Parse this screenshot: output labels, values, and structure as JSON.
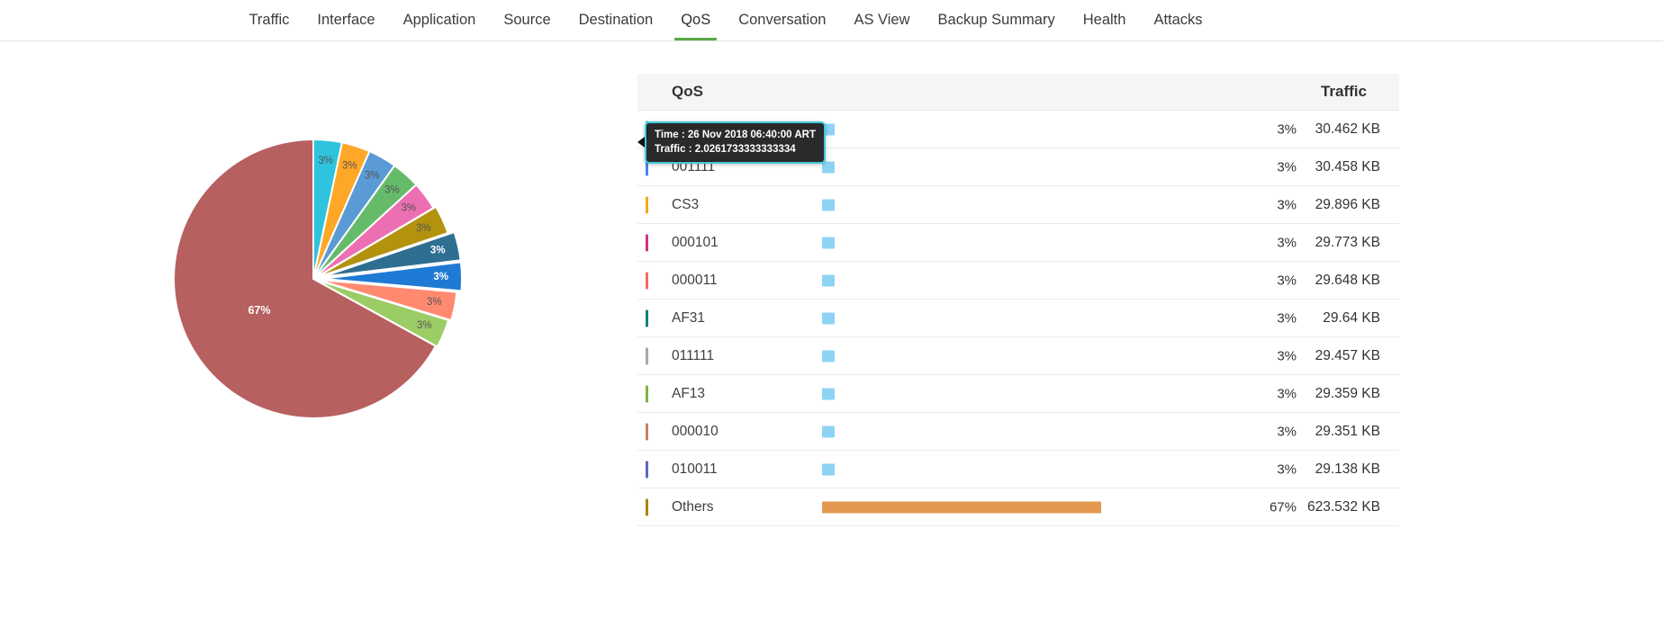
{
  "nav": {
    "items": [
      {
        "label": "Traffic",
        "active": false
      },
      {
        "label": "Interface",
        "active": false
      },
      {
        "label": "Application",
        "active": false
      },
      {
        "label": "Source",
        "active": false
      },
      {
        "label": "Destination",
        "active": false
      },
      {
        "label": "QoS",
        "active": true
      },
      {
        "label": "Conversation",
        "active": false
      },
      {
        "label": "AS View",
        "active": false
      },
      {
        "label": "Backup Summary",
        "active": false
      },
      {
        "label": "Health",
        "active": false
      },
      {
        "label": "Attacks",
        "active": false
      }
    ]
  },
  "chart_data": {
    "type": "pie",
    "labels": [
      "",
      "001111",
      "CS3",
      "000101",
      "000011",
      "AF31",
      "011111",
      "AF13",
      "000010",
      "010011",
      "Others"
    ],
    "values": [
      3.3,
      3.3,
      3.3,
      3.3,
      3.3,
      3.3,
      3.3,
      3.3,
      3.3,
      3.3,
      67
    ],
    "slice_labels": [
      "3%",
      "3%",
      "3%",
      "3%",
      "3%",
      "3%",
      "3%",
      "3%",
      "3%",
      "3%",
      "67%"
    ],
    "colors": [
      "#2ec4dd",
      "#ffa726",
      "#5b9bd5",
      "#66bb6a",
      "#ec6fb2",
      "#b3920e",
      "#2e6e90",
      "#1e7ad4",
      "#ff8a70",
      "#9ccc65",
      "#b76060"
    ],
    "label_colors": [
      "#555555",
      "#555555",
      "#555555",
      "#555555",
      "#555555",
      "#555555",
      "#ffffff",
      "#ffffff",
      "#555555",
      "#555555",
      "#ffffff"
    ],
    "explode": [
      0,
      0,
      0,
      0,
      0,
      3,
      10,
      10,
      5,
      2,
      0
    ],
    "legend_position": "none",
    "grid": false
  },
  "table": {
    "headers": {
      "qos": "QoS",
      "traffic": "Traffic"
    },
    "rows": [
      {
        "label": "",
        "marker_color": "#2ec4dd",
        "percent": 3,
        "percent_label": "3%",
        "traffic": "30.462 KB",
        "bar_color": "#8ed3f4"
      },
      {
        "label": "001111",
        "marker_color": "#4285f4",
        "percent": 3,
        "percent_label": "3%",
        "traffic": "30.458 KB",
        "bar_color": "#8ed3f4"
      },
      {
        "label": "CS3",
        "marker_color": "#f5a623",
        "percent": 3,
        "percent_label": "3%",
        "traffic": "29.896 KB",
        "bar_color": "#8ed3f4"
      },
      {
        "label": "000101",
        "marker_color": "#d03384",
        "percent": 3,
        "percent_label": "3%",
        "traffic": "29.773 KB",
        "bar_color": "#8ed3f4"
      },
      {
        "label": "000011",
        "marker_color": "#f26d5f",
        "percent": 3,
        "percent_label": "3%",
        "traffic": "29.648 KB",
        "bar_color": "#8ed3f4"
      },
      {
        "label": "AF31",
        "marker_color": "#17807e",
        "percent": 3,
        "percent_label": "3%",
        "traffic": "29.64 KB",
        "bar_color": "#8ed3f4"
      },
      {
        "label": "011111",
        "marker_color": "#a9a9a9",
        "percent": 3,
        "percent_label": "3%",
        "traffic": "29.457 KB",
        "bar_color": "#8ed3f4"
      },
      {
        "label": "AF13",
        "marker_color": "#7cb342",
        "percent": 3,
        "percent_label": "3%",
        "traffic": "29.359 KB",
        "bar_color": "#8ed3f4"
      },
      {
        "label": "000010",
        "marker_color": "#c97f63",
        "percent": 3,
        "percent_label": "3%",
        "traffic": "29.351 KB",
        "bar_color": "#8ed3f4"
      },
      {
        "label": "010011",
        "marker_color": "#5b6abf",
        "percent": 3,
        "percent_label": "3%",
        "traffic": "29.138 KB",
        "bar_color": "#8ed3f4"
      },
      {
        "label": "Others",
        "marker_color": "#a8860b",
        "percent": 67,
        "percent_label": "67%",
        "traffic": "623.532 KB",
        "bar_color": "#e2984f"
      }
    ]
  },
  "tooltip": {
    "line1": "Time : 26 Nov 2018 06:40:00 ART",
    "line2": "Traffic : 2.0261733333333334"
  },
  "colors": {
    "accent_green": "#58a946",
    "bar_blue": "#8ed3f4",
    "bar_orange": "#e2984f",
    "pie_main": "#b76060",
    "tooltip_border": "#41c8da"
  }
}
